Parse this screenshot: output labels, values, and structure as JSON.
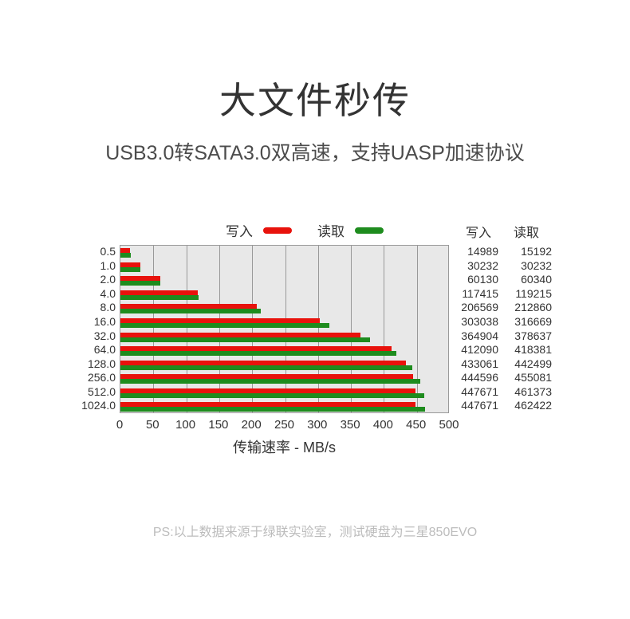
{
  "header": {
    "title": "大文件秒传",
    "subtitle": "USB3.0转SATA3.0双高速，支持UASP加速协议"
  },
  "legend": {
    "write_label": "写入",
    "read_label": "读取"
  },
  "table": {
    "write_header": "写入",
    "read_header": "读取",
    "write_values": [
      "14989",
      "30232",
      "60130",
      "117415",
      "206569",
      "303038",
      "364904",
      "412090",
      "433061",
      "444596",
      "447671",
      "447671"
    ],
    "read_values": [
      "15192",
      "30232",
      "60340",
      "119215",
      "212860",
      "316669",
      "378637",
      "418381",
      "442499",
      "455081",
      "461373",
      "462422"
    ]
  },
  "chart_data": {
    "type": "bar",
    "orientation": "horizontal",
    "title": "",
    "categories": [
      "0.5",
      "1.0",
      "2.0",
      "4.0",
      "8.0",
      "16.0",
      "32.0",
      "64.0",
      "128.0",
      "256.0",
      "512.0",
      "1024.0"
    ],
    "series": [
      {
        "name": "写入",
        "color": "#e8120c",
        "values": [
          14.989,
          30.232,
          60.13,
          117.415,
          206.569,
          303.038,
          364.904,
          412.09,
          433.061,
          444.596,
          447.671,
          447.671
        ]
      },
      {
        "name": "读取",
        "color": "#1e8c1e",
        "values": [
          15.192,
          30.232,
          60.34,
          119.215,
          212.86,
          316.669,
          378.637,
          418.381,
          442.499,
          455.081,
          461.373,
          462.422
        ]
      }
    ],
    "xlabel": "传输速率 - MB/s",
    "xlim": [
      0,
      500
    ],
    "xticks": [
      0,
      50,
      100,
      150,
      200,
      250,
      300,
      350,
      400,
      450,
      500
    ],
    "grid": true,
    "legend_position": "top",
    "plot_bg": "#e8e8e8",
    "grid_color": "#999999"
  },
  "footer": {
    "note": "PS:以上数据来源于绿联实验室，测试硬盘为三星850EVO"
  },
  "colors": {
    "write": "#e8120c",
    "read": "#1e8c1e"
  }
}
